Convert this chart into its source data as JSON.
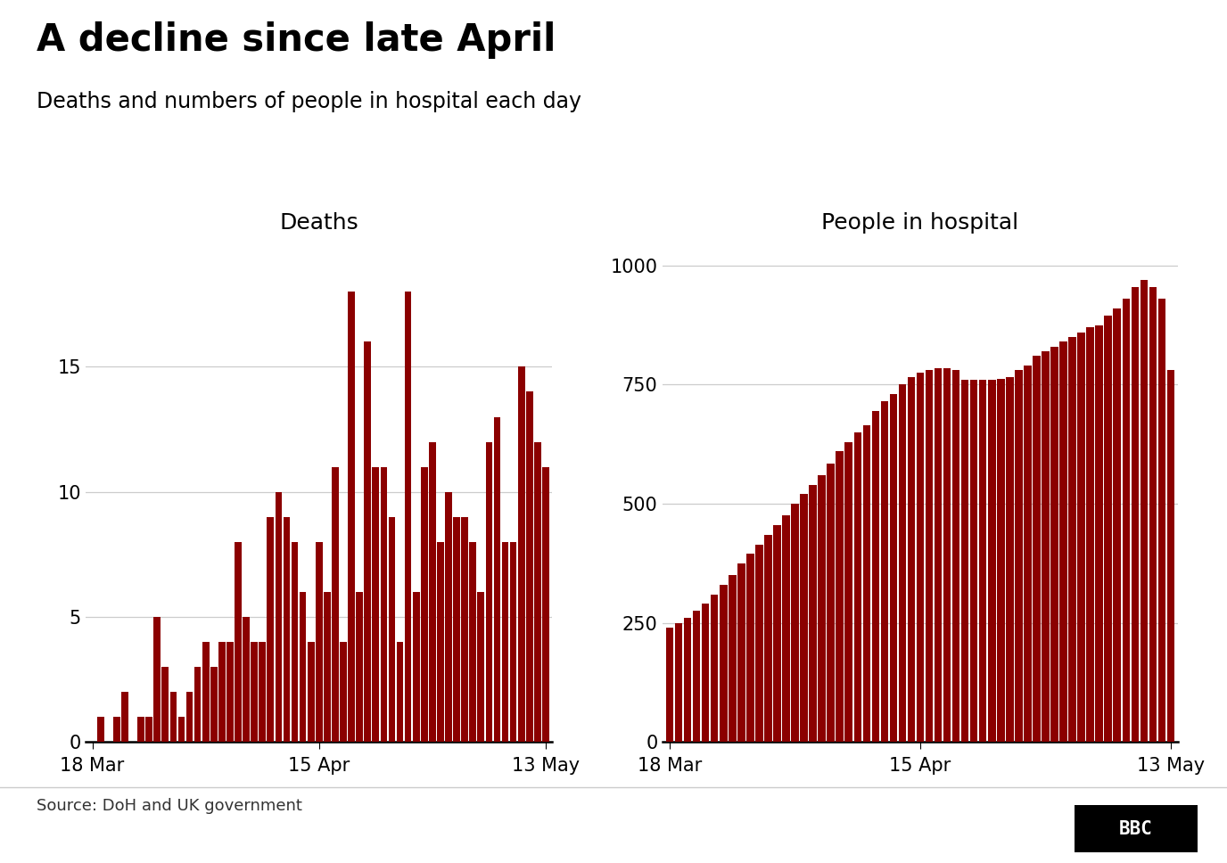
{
  "title": "A decline since late April",
  "subtitle": "Deaths and numbers of people in hospital each day",
  "deaths_label": "Deaths",
  "hospital_label": "People in hospital",
  "bar_color": "#8B0000",
  "source": "Source: DoH and UK government",
  "deaths_vals": [
    0,
    1,
    0,
    1,
    2,
    0,
    1,
    1,
    5,
    3,
    2,
    1,
    2,
    3,
    4,
    3,
    4,
    4,
    8,
    5,
    4,
    4,
    9,
    10,
    9,
    8,
    6,
    4,
    8,
    6,
    11,
    4,
    18,
    6,
    16,
    11,
    11,
    9,
    4,
    18,
    6,
    11,
    12,
    8,
    10,
    9,
    9,
    8,
    6,
    12,
    13,
    8,
    8,
    15,
    14,
    12,
    11
  ],
  "hospital_vals": [
    240,
    250,
    260,
    275,
    290,
    310,
    330,
    350,
    375,
    395,
    415,
    435,
    455,
    475,
    500,
    520,
    540,
    560,
    585,
    610,
    630,
    650,
    665,
    695,
    715,
    730,
    750,
    765,
    775,
    780,
    785,
    785,
    780,
    760,
    760,
    760,
    760,
    763,
    765,
    780,
    790,
    810,
    820,
    830,
    840,
    850,
    860,
    870,
    875,
    895,
    910,
    930,
    955,
    970,
    955,
    930,
    780
  ],
  "deaths_yticks": [
    0,
    5,
    10,
    15
  ],
  "deaths_ylim": [
    0,
    20
  ],
  "hospital_yticks": [
    0,
    250,
    500,
    750,
    1000
  ],
  "hospital_ylim": [
    0,
    1050
  ],
  "xtick_labels": [
    "18 Mar",
    "15 Apr",
    "13 May"
  ],
  "xtick_positions": [
    0,
    28,
    56
  ],
  "background_color": "#ffffff",
  "grid_color": "#cccccc",
  "title_fontsize": 30,
  "subtitle_fontsize": 17,
  "axis_label_fontsize": 18,
  "tick_fontsize": 15,
  "source_fontsize": 13
}
